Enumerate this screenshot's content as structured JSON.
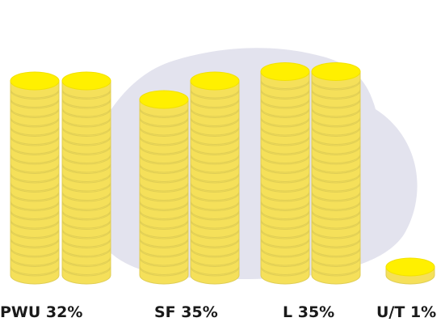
{
  "chart_data": {
    "type": "bar",
    "style": "coin-stacks",
    "categories": [
      "PWU",
      "SF",
      "L",
      "U/T"
    ],
    "values": [
      32,
      35,
      35,
      1
    ],
    "labels": [
      "PWU 32%",
      "SF 35%",
      "L 35%",
      "U/T 1%"
    ],
    "unit": "%",
    "stacks_per_category": [
      2,
      2,
      2,
      1
    ],
    "title": "",
    "xlabel": "",
    "ylabel": "",
    "colors": {
      "coin_top": "#FFF000",
      "coin_top_edge": "#F2E100",
      "coin_side": "#F5E05A",
      "coin_side_shadow": "#E0CE55",
      "background_blob": "#E3E3EE",
      "label": "#1a1a1a"
    }
  }
}
